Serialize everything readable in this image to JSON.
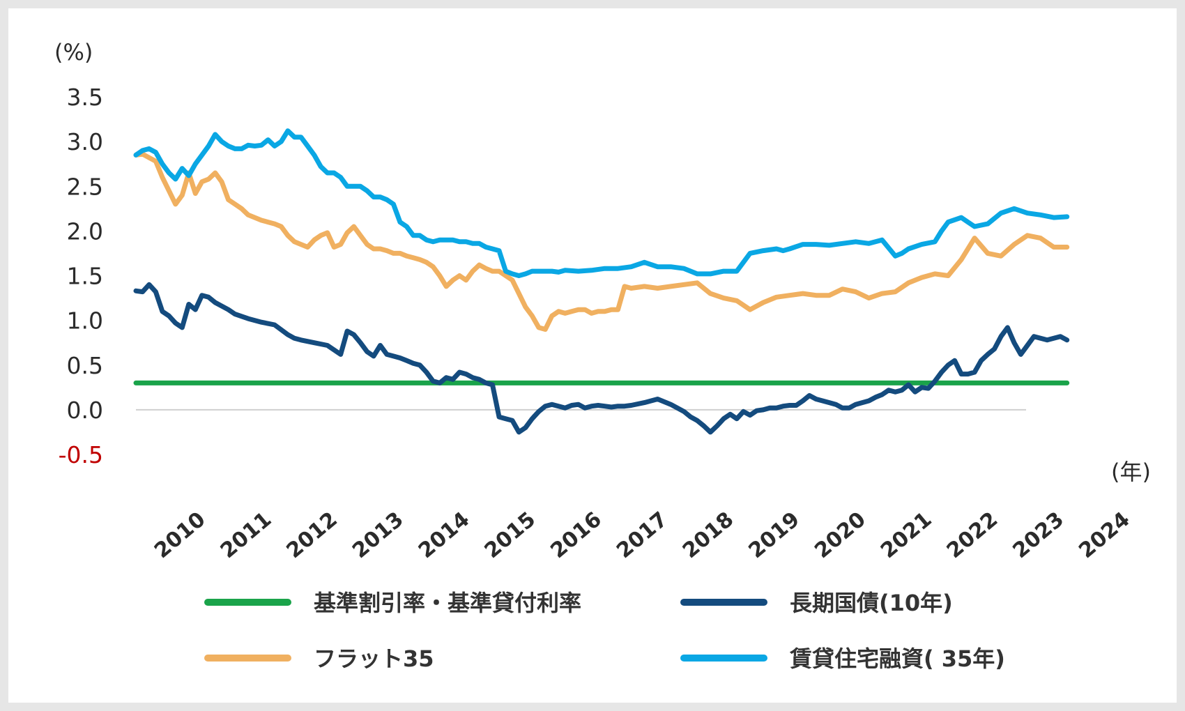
{
  "chart_data": {
    "type": "line",
    "y_unit": "(%)",
    "x_unit": "(年)",
    "ylim": [
      -0.5,
      3.5
    ],
    "y_ticks": [
      "3.5",
      "3.0",
      "2.5",
      "2.0",
      "1.5",
      "1.0",
      "0.5",
      "0.0",
      "-0.5"
    ],
    "x_ticks": [
      "2010",
      "2011",
      "2012",
      "2013",
      "2014",
      "2015",
      "2016",
      "2017",
      "2018",
      "2019",
      "2020",
      "2021",
      "2022",
      "2023",
      "2024"
    ],
    "xlim": [
      2009.5,
      2024.3
    ],
    "grid": false,
    "legend_position": "bottom",
    "colors": {
      "base_rate": "#1aa34a",
      "jgb10": "#144b7e",
      "flat35": "#f0b060",
      "rental35": "#0aa7e4",
      "negative_tick": "#c00000"
    },
    "series": [
      {
        "key": "base_rate",
        "name": "基準割引率・基準貸付利率",
        "x": [
          2009.5,
          2023.6
        ],
        "y": [
          0.3,
          0.3
        ]
      },
      {
        "key": "jgb10",
        "name": "長期国債(10年)",
        "x": [
          2009.5,
          2009.6,
          2009.7,
          2009.8,
          2009.9,
          2010.0,
          2010.1,
          2010.2,
          2010.3,
          2010.4,
          2010.5,
          2010.6,
          2010.7,
          2010.8,
          2010.9,
          2011.0,
          2011.2,
          2011.4,
          2011.6,
          2011.8,
          2011.9,
          2012.0,
          2012.2,
          2012.4,
          2012.6,
          2012.7,
          2012.8,
          2012.9,
          2013.0,
          2013.1,
          2013.2,
          2013.3,
          2013.4,
          2013.5,
          2013.6,
          2013.7,
          2013.8,
          2013.9,
          2014.0,
          2014.1,
          2014.2,
          2014.3,
          2014.4,
          2014.5,
          2014.6,
          2014.7,
          2014.8,
          2014.9,
          2015.0,
          2015.1,
          2015.2,
          2015.3,
          2015.4,
          2015.5,
          2015.6,
          2015.7,
          2015.8,
          2015.9,
          2016.0,
          2016.1,
          2016.2,
          2016.3,
          2016.4,
          2016.5,
          2016.6,
          2016.7,
          2016.8,
          2016.9,
          2017.0,
          2017.2,
          2017.4,
          2017.6,
          2017.8,
          2017.9,
          2018.0,
          2018.1,
          2018.2,
          2018.3,
          2018.4,
          2018.5,
          2018.6,
          2018.7,
          2018.8,
          2018.9,
          2019.0,
          2019.1,
          2019.2,
          2019.3,
          2019.4,
          2019.5,
          2019.6,
          2019.7,
          2019.8,
          2020.0,
          2020.1,
          2020.2,
          2020.3,
          2020.4,
          2020.5,
          2020.6,
          2020.7,
          2020.8,
          2020.9,
          2021.0,
          2021.1,
          2021.2,
          2021.3,
          2021.4,
          2021.5,
          2021.6,
          2021.7,
          2021.8,
          2021.9,
          2022.0,
          2022.1,
          2022.2,
          2022.3,
          2022.4,
          2022.5,
          2022.6,
          2022.7,
          2022.8,
          2022.9,
          2023.0,
          2023.1,
          2023.2,
          2023.3,
          2023.4,
          2023.5,
          2023.6
        ],
        "y": [
          1.33,
          1.32,
          1.4,
          1.32,
          1.1,
          1.05,
          0.97,
          0.92,
          1.18,
          1.12,
          1.28,
          1.26,
          1.2,
          1.16,
          1.12,
          1.07,
          1.02,
          0.98,
          0.95,
          0.84,
          0.8,
          0.78,
          0.75,
          0.72,
          0.62,
          0.88,
          0.84,
          0.75,
          0.65,
          0.6,
          0.72,
          0.62,
          0.6,
          0.58,
          0.55,
          0.52,
          0.5,
          0.42,
          0.32,
          0.3,
          0.36,
          0.34,
          0.42,
          0.4,
          0.36,
          0.34,
          0.3,
          0.28,
          -0.08,
          -0.1,
          -0.12,
          -0.25,
          -0.2,
          -0.1,
          -0.02,
          0.04,
          0.06,
          0.04,
          0.02,
          0.05,
          0.06,
          0.02,
          0.04,
          0.05,
          0.04,
          0.03,
          0.04,
          0.04,
          0.05,
          0.08,
          0.12,
          0.06,
          -0.02,
          -0.08,
          -0.12,
          -0.18,
          -0.25,
          -0.18,
          -0.1,
          -0.05,
          -0.1,
          -0.02,
          -0.06,
          -0.01,
          0.0,
          0.02,
          0.02,
          0.04,
          0.05,
          0.05,
          0.1,
          0.16,
          0.12,
          0.08,
          0.06,
          0.02,
          0.02,
          0.06,
          0.08,
          0.1,
          0.14,
          0.17,
          0.22,
          0.2,
          0.22,
          0.28,
          0.2,
          0.25,
          0.24,
          0.32,
          0.42,
          0.5,
          0.55,
          0.4,
          0.4,
          0.42,
          0.55,
          0.62,
          0.68,
          0.82,
          0.92,
          0.75,
          0.62,
          0.72,
          0.82,
          0.8,
          0.78,
          0.8,
          0.82,
          0.78
        ],
        "x_note": ""
      },
      {
        "key": "flat35",
        "name": "フラット35",
        "x": [
          2009.5,
          2009.6,
          2009.7,
          2009.8,
          2009.9,
          2010.0,
          2010.1,
          2010.2,
          2010.3,
          2010.4,
          2010.5,
          2010.6,
          2010.7,
          2010.8,
          2010.9,
          2011.0,
          2011.1,
          2011.2,
          2011.3,
          2011.4,
          2011.5,
          2011.6,
          2011.7,
          2011.8,
          2011.9,
          2012.0,
          2012.1,
          2012.2,
          2012.3,
          2012.4,
          2012.5,
          2012.6,
          2012.7,
          2012.8,
          2012.9,
          2013.0,
          2013.1,
          2013.2,
          2013.3,
          2013.4,
          2013.5,
          2013.6,
          2013.7,
          2013.8,
          2013.9,
          2014.0,
          2014.1,
          2014.2,
          2014.3,
          2014.4,
          2014.5,
          2014.6,
          2014.7,
          2014.8,
          2014.9,
          2015.0,
          2015.1,
          2015.2,
          2015.3,
          2015.4,
          2015.5,
          2015.6,
          2015.7,
          2015.8,
          2015.9,
          2016.0,
          2016.1,
          2016.2,
          2016.3,
          2016.4,
          2016.5,
          2016.6,
          2016.7,
          2016.8,
          2016.9,
          2017.0,
          2017.2,
          2017.4,
          2017.6,
          2017.8,
          2018.0,
          2018.2,
          2018.4,
          2018.6,
          2018.8,
          2019.0,
          2019.2,
          2019.4,
          2019.6,
          2019.8,
          2020.0,
          2020.2,
          2020.4,
          2020.6,
          2020.8,
          2021.0,
          2021.2,
          2021.4,
          2021.6,
          2021.8,
          2022.0,
          2022.2,
          2022.4,
          2022.6,
          2022.8,
          2023.0,
          2023.2,
          2023.4,
          2023.6
        ],
        "y": [
          2.85,
          2.86,
          2.82,
          2.78,
          2.6,
          2.45,
          2.3,
          2.4,
          2.65,
          2.42,
          2.55,
          2.58,
          2.65,
          2.55,
          2.35,
          2.3,
          2.25,
          2.18,
          2.15,
          2.12,
          2.1,
          2.08,
          2.05,
          1.95,
          1.88,
          1.85,
          1.82,
          1.9,
          1.95,
          1.98,
          1.82,
          1.85,
          1.98,
          2.05,
          1.95,
          1.85,
          1.8,
          1.8,
          1.78,
          1.75,
          1.75,
          1.72,
          1.7,
          1.68,
          1.65,
          1.6,
          1.5,
          1.38,
          1.45,
          1.5,
          1.45,
          1.55,
          1.62,
          1.58,
          1.55,
          1.55,
          1.5,
          1.45,
          1.3,
          1.15,
          1.05,
          0.92,
          0.9,
          1.05,
          1.1,
          1.08,
          1.1,
          1.12,
          1.12,
          1.08,
          1.1,
          1.1,
          1.12,
          1.12,
          1.38,
          1.36,
          1.38,
          1.36,
          1.38,
          1.4,
          1.42,
          1.3,
          1.25,
          1.22,
          1.12,
          1.2,
          1.26,
          1.28,
          1.3,
          1.28,
          1.28,
          1.35,
          1.32,
          1.25,
          1.3,
          1.32,
          1.42,
          1.48,
          1.52,
          1.5,
          1.68,
          1.92,
          1.75,
          1.72,
          1.85,
          1.95,
          1.92,
          1.82,
          1.82
        ]
      },
      {
        "key": "rental35",
        "name": "賃貸住宅融資( 35年)",
        "x": [
          2009.5,
          2009.6,
          2009.7,
          2009.8,
          2009.9,
          2010.0,
          2010.1,
          2010.2,
          2010.3,
          2010.4,
          2010.5,
          2010.6,
          2010.7,
          2010.8,
          2010.9,
          2011.0,
          2011.1,
          2011.2,
          2011.3,
          2011.4,
          2011.5,
          2011.6,
          2011.7,
          2011.8,
          2011.9,
          2012.0,
          2012.1,
          2012.2,
          2012.3,
          2012.4,
          2012.5,
          2012.6,
          2012.7,
          2012.8,
          2012.9,
          2013.0,
          2013.1,
          2013.2,
          2013.3,
          2013.4,
          2013.5,
          2013.6,
          2013.7,
          2013.8,
          2013.9,
          2014.0,
          2014.1,
          2014.2,
          2014.3,
          2014.4,
          2014.5,
          2014.6,
          2014.7,
          2014.8,
          2014.9,
          2015.0,
          2015.1,
          2015.2,
          2015.3,
          2015.4,
          2015.5,
          2015.6,
          2015.7,
          2015.8,
          2015.9,
          2016.0,
          2016.2,
          2016.4,
          2016.6,
          2016.8,
          2017.0,
          2017.2,
          2017.4,
          2017.6,
          2017.8,
          2018.0,
          2018.2,
          2018.4,
          2018.6,
          2018.8,
          2019.0,
          2019.2,
          2019.3,
          2019.4,
          2019.6,
          2019.8,
          2020.0,
          2020.2,
          2020.4,
          2020.6,
          2020.8,
          2021.0,
          2021.1,
          2021.2,
          2021.4,
          2021.6,
          2021.7,
          2021.8,
          2022.0,
          2022.1,
          2022.2,
          2022.4,
          2022.6,
          2022.8,
          2023.0,
          2023.2,
          2023.4,
          2023.6
        ],
        "y": [
          2.85,
          2.9,
          2.92,
          2.88,
          2.75,
          2.65,
          2.58,
          2.7,
          2.62,
          2.75,
          2.85,
          2.95,
          3.08,
          3.0,
          2.95,
          2.92,
          2.92,
          2.96,
          2.95,
          2.96,
          3.02,
          2.95,
          3.0,
          3.12,
          3.05,
          3.05,
          2.95,
          2.85,
          2.72,
          2.65,
          2.65,
          2.6,
          2.5,
          2.5,
          2.5,
          2.45,
          2.38,
          2.38,
          2.35,
          2.3,
          2.1,
          2.05,
          1.95,
          1.95,
          1.9,
          1.88,
          1.9,
          1.9,
          1.9,
          1.88,
          1.88,
          1.86,
          1.86,
          1.82,
          1.8,
          1.78,
          1.55,
          1.52,
          1.5,
          1.52,
          1.55,
          1.55,
          1.55,
          1.55,
          1.54,
          1.56,
          1.55,
          1.56,
          1.58,
          1.58,
          1.6,
          1.65,
          1.6,
          1.6,
          1.58,
          1.52,
          1.52,
          1.55,
          1.55,
          1.75,
          1.78,
          1.8,
          1.78,
          1.8,
          1.85,
          1.85,
          1.84,
          1.86,
          1.88,
          1.86,
          1.9,
          1.72,
          1.75,
          1.8,
          1.85,
          1.88,
          2.0,
          2.1,
          2.15,
          2.1,
          2.05,
          2.08,
          2.2,
          2.25,
          2.2,
          2.18,
          2.15,
          2.16
        ]
      }
    ]
  }
}
